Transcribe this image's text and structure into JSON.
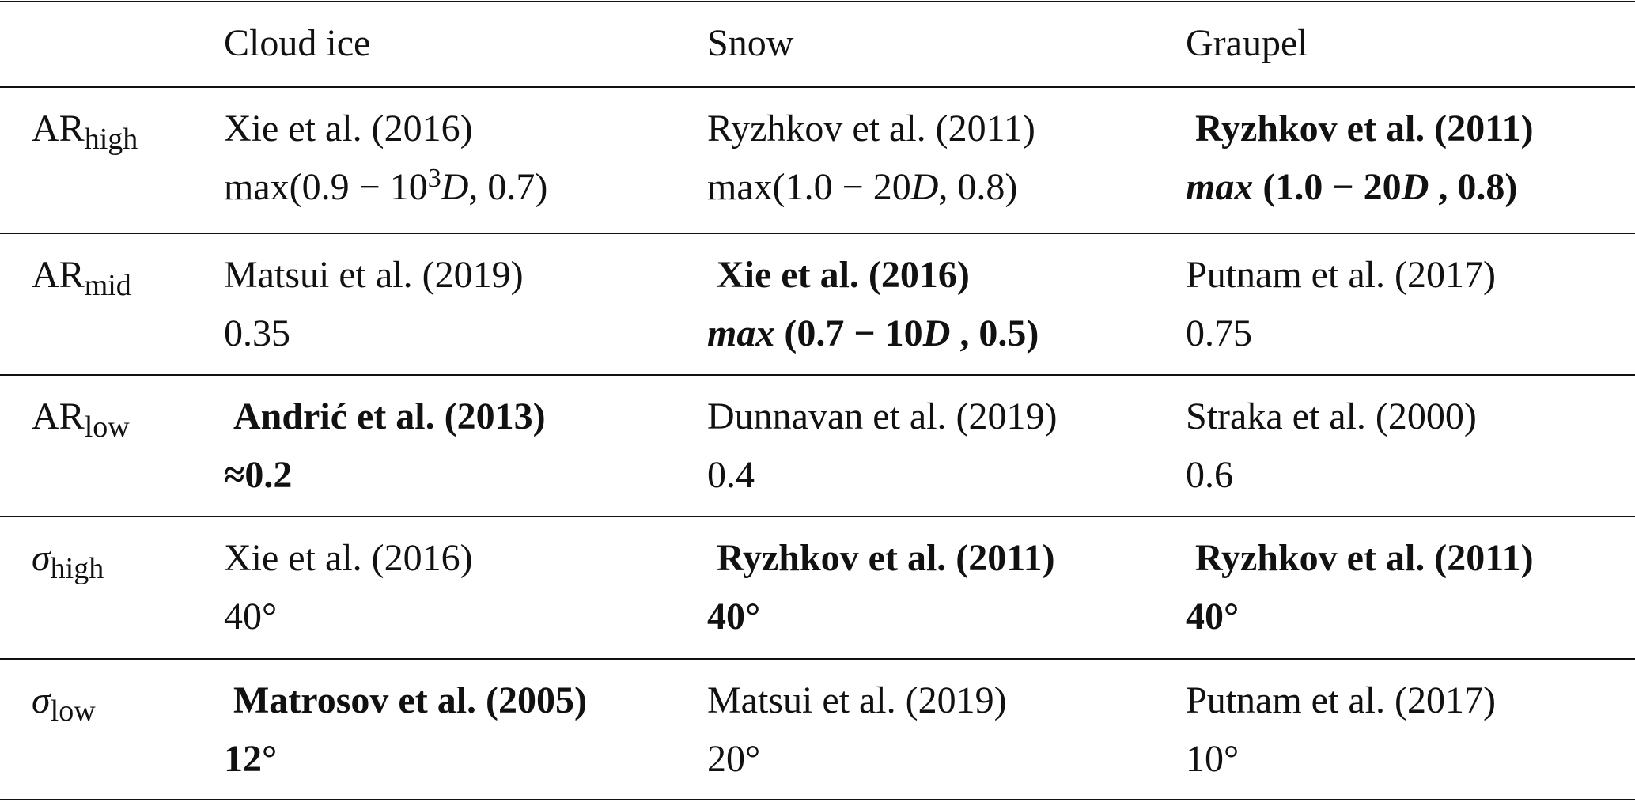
{
  "table": {
    "header": [
      "Cloud ice",
      "Snow",
      "Graupel"
    ],
    "rows": [
      {
        "label": {
          "base": "AR",
          "sub": "high",
          "italic": false
        },
        "cells": [
          {
            "ref": "Xie et al. (2016)",
            "bold": false,
            "value": [
              {
                "text": "max(0.9 − 10"
              },
              {
                "text": "3",
                "style": "sup"
              },
              {
                "text": "D",
                "style": "italic"
              },
              {
                "text": ", 0.7)"
              }
            ]
          },
          {
            "ref": "Ryzhkov et al. (2011)",
            "bold": false,
            "value": [
              {
                "text": "max(1.0 − 20"
              },
              {
                "text": "D",
                "style": "italic"
              },
              {
                "text": ", 0.8)"
              }
            ]
          },
          {
            "ref": "Ryzhkov et al. (2011)",
            "bold": true,
            "value": [
              {
                "text": "max",
                "style": "italic"
              },
              {
                "text": " (1.0 − 20"
              },
              {
                "text": "D",
                "style": "italic"
              },
              {
                "text": " , 0.8)"
              }
            ]
          }
        ]
      },
      {
        "label": {
          "base": "AR",
          "sub": "mid",
          "italic": false
        },
        "cells": [
          {
            "ref": "Matsui et al. (2019)",
            "bold": false,
            "value": [
              {
                "text": "0.35"
              }
            ]
          },
          {
            "ref": "Xie et al. (2016)",
            "bold": true,
            "value": [
              {
                "text": "max",
                "style": "italic"
              },
              {
                "text": " (0.7 − 10"
              },
              {
                "text": "D",
                "style": "italic"
              },
              {
                "text": " , 0.5)"
              }
            ]
          },
          {
            "ref": "Putnam et al. (2017)",
            "bold": false,
            "value": [
              {
                "text": "0.75"
              }
            ]
          }
        ]
      },
      {
        "label": {
          "base": "AR",
          "sub": "low",
          "italic": false
        },
        "cells": [
          {
            "ref": "Andrić et al. (2013)",
            "bold": true,
            "value": [
              {
                "text": "≈0.2"
              }
            ]
          },
          {
            "ref": "Dunnavan et al. (2019)",
            "bold": false,
            "value": [
              {
                "text": "0.4"
              }
            ]
          },
          {
            "ref": "Straka et al. (2000)",
            "bold": false,
            "value": [
              {
                "text": "0.6"
              }
            ]
          }
        ]
      },
      {
        "label": {
          "base": "σ",
          "sub": "high",
          "italic": true
        },
        "cells": [
          {
            "ref": "Xie et al. (2016)",
            "bold": false,
            "value": [
              {
                "text": "40°"
              }
            ]
          },
          {
            "ref": "Ryzhkov et al. (2011)",
            "bold": true,
            "value": [
              {
                "text": "40°"
              }
            ]
          },
          {
            "ref": "Ryzhkov et al. (2011)",
            "bold": true,
            "value": [
              {
                "text": "40°"
              }
            ]
          }
        ]
      },
      {
        "label": {
          "base": "σ",
          "sub": "low",
          "italic": true
        },
        "cells": [
          {
            "ref": "Matrosov et al. (2005)",
            "bold": true,
            "value": [
              {
                "text": "12°"
              }
            ]
          },
          {
            "ref": "Matsui et al. (2019)",
            "bold": false,
            "value": [
              {
                "text": "20°"
              }
            ]
          },
          {
            "ref": "Putnam et al. (2017)",
            "bold": false,
            "value": [
              {
                "text": "10°"
              }
            ]
          }
        ]
      }
    ]
  }
}
